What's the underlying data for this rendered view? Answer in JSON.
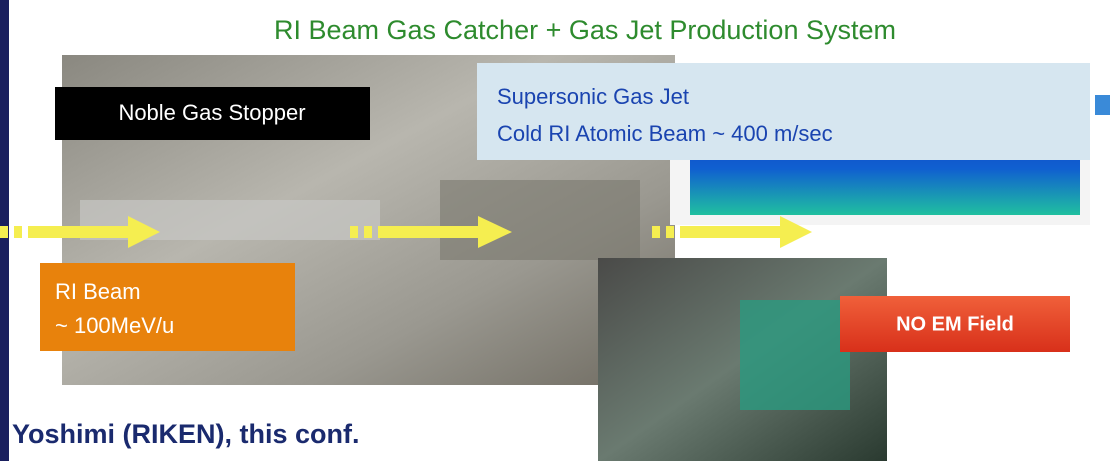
{
  "title": "RI Beam Gas Catcher + Gas Jet Production System",
  "stopper_label": "Noble Gas Stopper",
  "gas_jet": {
    "line1": "Supersonic Gas Jet",
    "line2": "Cold RI Atomic Beam ~ 400 m/sec"
  },
  "beam": {
    "line1": "RI Beam",
    "line2": "~ 100MeV/u"
  },
  "field_label": "NO EM Field",
  "credit": "Yoshimi (RIKEN), this conf."
}
